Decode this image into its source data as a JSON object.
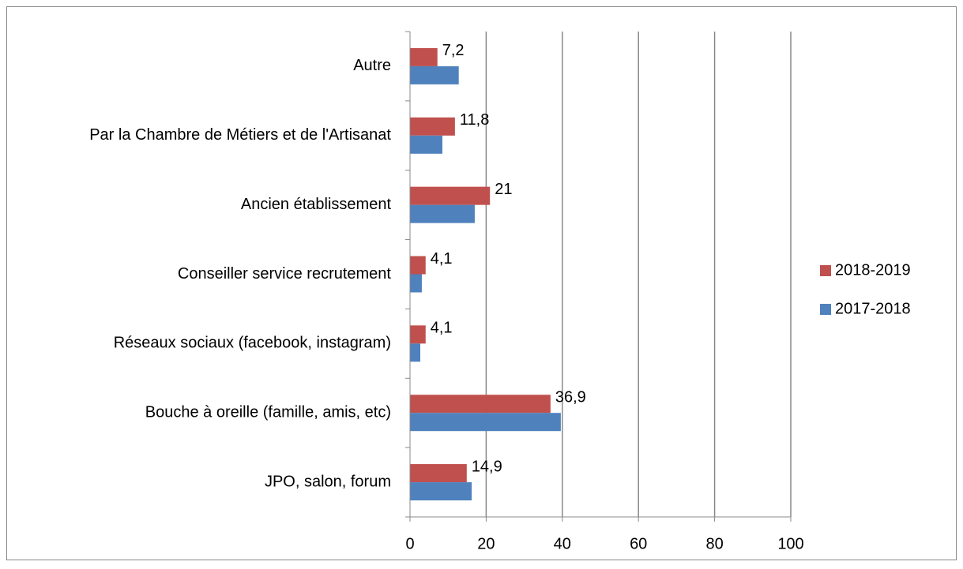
{
  "chart_data": {
    "type": "hbar",
    "categories": [
      "JPO, salon, forum",
      "Bouche à oreille (famille, amis, etc)",
      "Réseaux sociaux (facebook, instagram)",
      "Conseiller service recrutement",
      "Ancien établissement",
      "Par la Chambre de Métiers et de l'Artisanat",
      "Autre"
    ],
    "series": [
      {
        "name": "2018-2019",
        "color": "#c0504d",
        "values": [
          14.9,
          36.9,
          4.1,
          4.1,
          21,
          11.8,
          7.2
        ],
        "value_labels": [
          "14,9",
          "36,9",
          "4,1",
          "4,1",
          "21",
          "11,8",
          "7,2"
        ]
      },
      {
        "name": "2017-2018",
        "color": "#4f81bd",
        "values": [
          16.2,
          39.6,
          2.7,
          3.1,
          17,
          8.5,
          12.8
        ]
      }
    ],
    "xlim": [
      0,
      100
    ],
    "xticks": [
      0,
      20,
      40,
      60,
      80,
      100
    ],
    "grid": true,
    "legend": "right"
  }
}
